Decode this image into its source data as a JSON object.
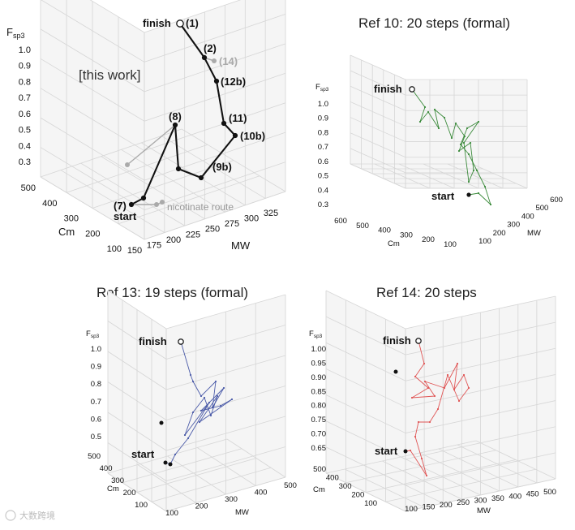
{
  "chart_data": [
    {
      "type": "line",
      "projection": "3d",
      "title": "",
      "annotation": "[this work]",
      "xlabel": "MW",
      "ylabel": "Cm",
      "zlabel": "F",
      "zlabel_sub": "sp3",
      "x_ticks": [
        "150",
        "175",
        "200",
        "225",
        "250",
        "275",
        "300",
        "325"
      ],
      "y_ticks": [
        "100",
        "200",
        "300",
        "400",
        "500"
      ],
      "z_ticks": [
        "0.3",
        "0.4",
        "0.5",
        "0.6",
        "0.7",
        "0.8",
        "0.9",
        "1.0"
      ],
      "start_label": "start",
      "finish_label": "finish",
      "side_route_label": "nicotinate route",
      "main_route": {
        "color": "#111111",
        "points": [
          {
            "label": "(1)",
            "finish": true
          },
          {
            "label": "(2)"
          },
          {
            "label": "(12b)"
          },
          {
            "label": "(11)"
          },
          {
            "label": "(10b)"
          },
          {
            "label": "(9b)"
          },
          {
            "label": ""
          },
          {
            "label": "(8)"
          },
          {
            "label": ""
          },
          {
            "label": "(7)",
            "start": true
          }
        ]
      },
      "side_route": {
        "color": "#aaaaaa",
        "points": [
          {
            "label": "(14)"
          },
          {
            "label": ""
          },
          {
            "label": ""
          }
        ]
      }
    },
    {
      "type": "line",
      "projection": "3d",
      "title": "Ref 10: 20 steps (formal)",
      "xlabel": "MW",
      "ylabel": "Cm",
      "zlabel": "F",
      "zlabel_sub": "sp3",
      "x_ticks": [
        "100",
        "200",
        "300",
        "400",
        "500",
        "600"
      ],
      "y_ticks": [
        "100",
        "200",
        "300",
        "400",
        "500",
        "600"
      ],
      "z_ticks": [
        "0.3",
        "0.4",
        "0.5",
        "0.6",
        "0.7",
        "0.8",
        "0.9",
        "1.0"
      ],
      "start_label": "start",
      "finish_label": "finish",
      "series_color": "#3a8a3a",
      "steps": 20
    },
    {
      "type": "line",
      "projection": "3d",
      "title": "Ref 13: 19 steps (formal)",
      "xlabel": "MW",
      "ylabel": "Cm",
      "zlabel": "F",
      "zlabel_sub": "sp3",
      "x_ticks": [
        "100",
        "200",
        "300",
        "400",
        "500"
      ],
      "y_ticks": [
        "100",
        "200",
        "300",
        "400",
        "500"
      ],
      "z_ticks": [
        "0.5",
        "0.6",
        "0.7",
        "0.8",
        "0.9",
        "1.0"
      ],
      "start_label": "start",
      "finish_label": "finish",
      "series_color": "#4a5aa8",
      "steps": 19
    },
    {
      "type": "line",
      "projection": "3d",
      "title": "Ref 14: 20 steps",
      "xlabel": "MW",
      "ylabel": "Cm",
      "zlabel": "F",
      "zlabel_sub": "sp3",
      "x_ticks": [
        "100",
        "150",
        "200",
        "250",
        "300",
        "350",
        "400",
        "450",
        "500"
      ],
      "y_ticks": [
        "100",
        "200",
        "300",
        "400",
        "500"
      ],
      "z_ticks": [
        "0.65",
        "0.70",
        "0.75",
        "0.80",
        "0.85",
        "0.90",
        "0.95",
        "1.00"
      ],
      "start_label": "start",
      "finish_label": "finish",
      "series_color": "#e05555",
      "steps": 20
    }
  ],
  "watermark": "大数跨境"
}
